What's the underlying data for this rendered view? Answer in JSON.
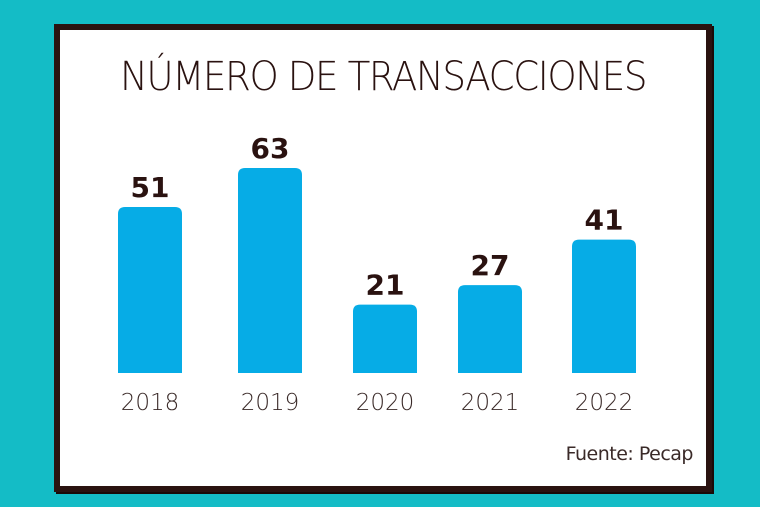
{
  "colors": {
    "background": "#14bcc6",
    "frame_border": "#2a1210",
    "bar": "#06ace6",
    "value_label": "#2a1210",
    "tick_label": "#3a2a28"
  },
  "chart_data": {
    "type": "bar",
    "title": "NÚMERO DE TRANSACCIONES",
    "categories": [
      "2018",
      "2019",
      "2020",
      "2021",
      "2022"
    ],
    "values": [
      51,
      63,
      21,
      27,
      41
    ],
    "xlabel": "",
    "ylabel": "",
    "ylim": [
      0,
      63
    ],
    "grid": false,
    "data_labels": true,
    "source": "Fuente: Pecap"
  }
}
